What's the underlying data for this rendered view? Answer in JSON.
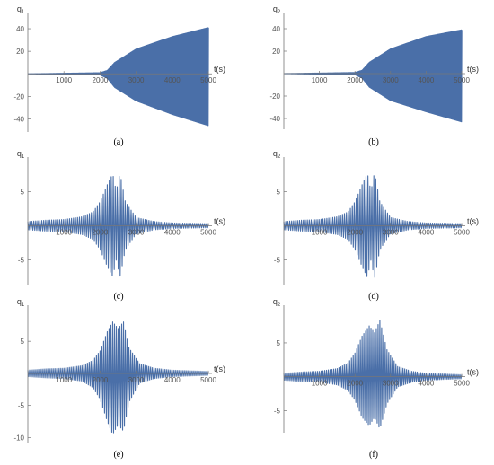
{
  "panel_color": "#4A6FA8",
  "chart_data": [
    {
      "type": "line",
      "caption": "(a)",
      "ylabel": {
        "base": "q",
        "sub": "1"
      },
      "xlabel": "t(s)",
      "xlim": [
        0,
        5000
      ],
      "ylim": [
        -50,
        48
      ],
      "x_ticks": [
        1000,
        2000,
        3000,
        4000,
        5000
      ],
      "x_tick_labels": [
        "1000",
        "2000",
        "3000",
        "4000",
        "5000"
      ],
      "y_ticks": [
        -40,
        -20,
        20,
        40
      ],
      "y_tick_labels": [
        "-40",
        "-20",
        "20",
        "40"
      ],
      "envelope": {
        "t": [
          0,
          2000,
          2200,
          2400,
          3000,
          4000,
          5000
        ],
        "upper": [
          0,
          1,
          3,
          10,
          22,
          33,
          41
        ],
        "lower": [
          0,
          -1,
          -4,
          -12,
          -24,
          -36,
          -46
        ]
      },
      "oscillation_period_s": 18
    },
    {
      "type": "line",
      "caption": "(b)",
      "ylabel": {
        "base": "q",
        "sub": "2"
      },
      "xlabel": "t(s)",
      "xlim": [
        0,
        5000
      ],
      "ylim": [
        -48,
        48
      ],
      "x_ticks": [
        1000,
        2000,
        3000,
        4000,
        5000
      ],
      "x_tick_labels": [
        "1000",
        "2000",
        "3000",
        "4000",
        "5000"
      ],
      "y_ticks": [
        -40,
        -20,
        20,
        40
      ],
      "y_tick_labels": [
        "-40",
        "-20",
        "20",
        "40"
      ],
      "envelope": {
        "t": [
          0,
          2000,
          2200,
          2400,
          3000,
          4000,
          5000
        ],
        "upper": [
          0,
          1,
          3,
          10,
          22,
          33,
          39
        ],
        "lower": [
          0,
          -1,
          -4,
          -12,
          -24,
          -34,
          -43
        ]
      },
      "oscillation_period_s": 18
    },
    {
      "type": "line",
      "caption": "(c)",
      "ylabel": {
        "base": "q",
        "sub": "1"
      },
      "xlabel": "t(s)",
      "xlim": [
        0,
        5000
      ],
      "ylim": [
        -8.5,
        9
      ],
      "x_ticks": [
        1000,
        2000,
        3000,
        4000,
        5000
      ],
      "x_tick_labels": [
        "1000",
        "2000",
        "3000",
        "4000",
        "5000"
      ],
      "y_ticks": [
        -5,
        5
      ],
      "y_tick_labels": [
        "-5",
        "5"
      ],
      "envelope": {
        "t": [
          0,
          500,
          1000,
          1500,
          1800,
          2000,
          2200,
          2350,
          2450,
          2550,
          2700,
          3000,
          3500,
          4000,
          5000
        ],
        "upper": [
          0.6,
          0.8,
          0.9,
          1.3,
          2,
          3.5,
          6,
          7.6,
          5,
          7.8,
          3.5,
          1.2,
          0.6,
          0.4,
          0.3
        ],
        "lower": [
          -0.6,
          -0.8,
          -0.9,
          -1.3,
          -2,
          -3.5,
          -6,
          -7.5,
          -5,
          -7.6,
          -3.5,
          -1.2,
          -0.6,
          -0.4,
          -0.3
        ]
      },
      "oscillation_period_s": 55
    },
    {
      "type": "line",
      "caption": "(d)",
      "ylabel": {
        "base": "q",
        "sub": "2"
      },
      "xlabel": "t(s)",
      "xlim": [
        0,
        5000
      ],
      "ylim": [
        -8.5,
        9
      ],
      "x_ticks": [
        1000,
        2000,
        3000,
        4000,
        5000
      ],
      "x_tick_labels": [
        "1000",
        "2000",
        "3000",
        "4000",
        "5000"
      ],
      "y_ticks": [
        -5,
        5
      ],
      "y_tick_labels": [
        "-5",
        "5"
      ],
      "envelope": {
        "t": [
          0,
          500,
          1000,
          1500,
          1800,
          2000,
          2200,
          2350,
          2450,
          2550,
          2700,
          3000,
          3500,
          4000,
          5000
        ],
        "upper": [
          0.6,
          0.8,
          0.9,
          1.3,
          2,
          3.5,
          6,
          7.7,
          5,
          7.9,
          3.5,
          1.2,
          0.6,
          0.4,
          0.3
        ],
        "lower": [
          -0.6,
          -0.8,
          -0.9,
          -1.3,
          -2,
          -3.5,
          -6,
          -7.6,
          -5,
          -7.8,
          -3.5,
          -1.2,
          -0.6,
          -0.4,
          -0.3
        ]
      },
      "oscillation_period_s": 55
    },
    {
      "type": "line",
      "caption": "(e)",
      "ylabel": {
        "base": "q",
        "sub": "1"
      },
      "xlabel": "t(s)",
      "xlim": [
        0,
        5000
      ],
      "ylim": [
        -10.5,
        9.5
      ],
      "x_ticks": [
        1000,
        2000,
        3000,
        4000,
        5000
      ],
      "x_tick_labels": [
        "1000",
        "2000",
        "3000",
        "4000",
        "5000"
      ],
      "y_ticks": [
        -10,
        -5,
        5
      ],
      "y_tick_labels": [
        "-10",
        "-5",
        "5"
      ],
      "envelope": {
        "t": [
          0,
          500,
          1000,
          1500,
          1800,
          2000,
          2200,
          2350,
          2500,
          2650,
          2800,
          3100,
          3500,
          4000,
          5000
        ],
        "upper": [
          0.5,
          0.7,
          0.8,
          1.2,
          2,
          3.5,
          6.5,
          8,
          7,
          8,
          4,
          1.5,
          0.8,
          0.5,
          0.3
        ],
        "lower": [
          -0.5,
          -0.7,
          -0.8,
          -1.2,
          -2.2,
          -4,
          -7.5,
          -9.5,
          -8,
          -9,
          -4.5,
          -1.5,
          -0.8,
          -0.5,
          -0.3
        ]
      },
      "oscillation_period_s": 50
    },
    {
      "type": "line",
      "caption": "(f)",
      "ylabel": {
        "base": "q",
        "sub": "2"
      },
      "xlabel": "t(s)",
      "xlim": [
        0,
        5000
      ],
      "ylim": [
        -8,
        9.5
      ],
      "x_ticks": [
        1000,
        2000,
        3000,
        4000,
        5000
      ],
      "x_tick_labels": [
        "1000",
        "2000",
        "3000",
        "4000",
        "5000"
      ],
      "y_ticks": [
        -5,
        5
      ],
      "y_tick_labels": [
        "-5",
        "5"
      ],
      "envelope": {
        "t": [
          0,
          500,
          1000,
          1500,
          1800,
          2000,
          2200,
          2400,
          2550,
          2700,
          2900,
          3200,
          3600,
          4000,
          5000
        ],
        "upper": [
          0.5,
          0.7,
          0.8,
          1.2,
          2,
          3.5,
          6,
          7.5,
          6.5,
          8.3,
          4,
          1.5,
          0.8,
          0.5,
          0.3
        ],
        "lower": [
          -0.5,
          -0.7,
          -0.8,
          -1.2,
          -2,
          -3.5,
          -6,
          -7.2,
          -6,
          -7.7,
          -4,
          -1.5,
          -0.8,
          -0.5,
          -0.3
        ]
      },
      "oscillation_period_s": 50
    }
  ]
}
